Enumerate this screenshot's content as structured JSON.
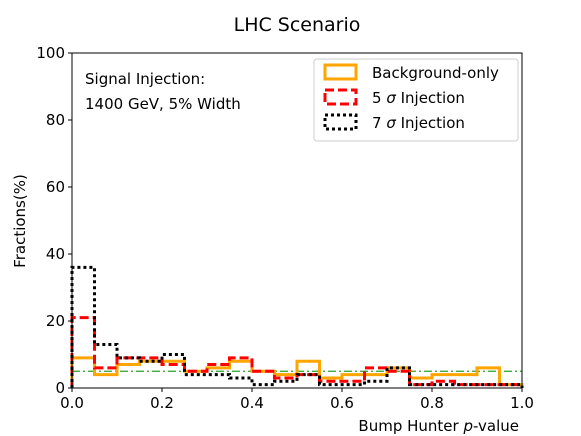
{
  "chart_data": {
    "type": "histogram-step",
    "title": "LHC Scenario",
    "xlabel": "Bump Hunter",
    "xlabel_italic": "p",
    "xlabel_suffix": "-value",
    "ylabel": "Fractions(%)",
    "xlim": [
      0.0,
      1.0
    ],
    "ylim": [
      0,
      100
    ],
    "xticks": [
      "0.0",
      "0.2",
      "0.4",
      "0.6",
      "0.8",
      "1.0"
    ],
    "yticks": [
      "0",
      "20",
      "40",
      "60",
      "80",
      "100"
    ],
    "annotation": [
      "Signal Injection:",
      "1400 GeV, 5% Width"
    ],
    "legend_position": "top-right",
    "bin_edges": [
      0.0,
      0.05,
      0.1,
      0.15,
      0.2,
      0.25,
      0.3,
      0.35,
      0.4,
      0.45,
      0.5,
      0.55,
      0.6,
      0.65,
      0.7,
      0.75,
      0.8,
      0.85,
      0.9,
      0.95,
      1.0
    ],
    "reference_line": {
      "y": 5,
      "color": "#2ca02c",
      "style": "dashdot"
    },
    "series": [
      {
        "name": "Background-only",
        "color": "#ffa500",
        "style": "solid",
        "values": [
          9,
          4,
          7,
          8,
          8,
          5,
          6,
          8,
          5,
          4,
          8,
          3,
          4,
          4,
          6,
          3,
          4,
          4,
          6,
          1
        ]
      },
      {
        "name": "5 σ Injection",
        "name_parts": [
          "5 ",
          "σ",
          " Injection"
        ],
        "color": "#ff0000",
        "style": "dashed",
        "values": [
          21,
          6,
          9,
          9,
          7,
          5,
          7,
          9,
          5,
          3,
          4,
          2,
          2,
          6,
          5,
          1,
          2,
          1,
          1,
          1
        ]
      },
      {
        "name": "7 σ Injection",
        "name_parts": [
          "7 ",
          "σ",
          " Injection"
        ],
        "color": "#000000",
        "style": "dotted",
        "values": [
          36,
          13,
          9,
          8,
          10,
          4,
          4,
          3,
          1,
          2,
          4,
          1,
          1,
          2,
          6,
          1,
          1,
          1,
          1,
          1
        ]
      }
    ]
  }
}
